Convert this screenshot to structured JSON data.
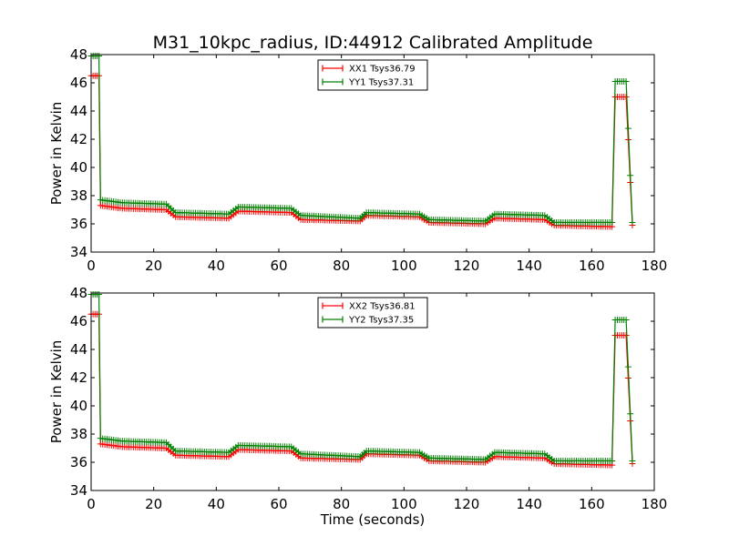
{
  "chart_data": [
    {
      "type": "line",
      "title": "M31_10kpc_radius, ID:44912 Calibrated Amplitude",
      "xlabel": "",
      "ylabel": "Power in Kelvin",
      "xlim": [
        0,
        180
      ],
      "ylim": [
        34,
        48
      ],
      "xticks": [
        "0",
        "20",
        "40",
        "60",
        "80",
        "100",
        "120",
        "140",
        "160",
        "180"
      ],
      "yticks": [
        "34",
        "36",
        "38",
        "40",
        "42",
        "44",
        "46",
        "48"
      ],
      "grid": false,
      "legend_position": "top-center",
      "series": [
        {
          "name": "XX1 Tsys36.79",
          "color": "#ff0000",
          "x": [
            0,
            2.5,
            3,
            10,
            24,
            27,
            44,
            47,
            64,
            67,
            86,
            88,
            105,
            108,
            126,
            129,
            145,
            148,
            166.5,
            167.5,
            171,
            173
          ],
          "y": [
            46.5,
            46.5,
            37.3,
            37.1,
            37.0,
            36.5,
            36.4,
            36.9,
            36.8,
            36.3,
            36.2,
            36.6,
            36.5,
            36.1,
            36.0,
            36.4,
            36.3,
            35.9,
            35.8,
            45.0,
            45.0,
            35.9
          ]
        },
        {
          "name": "YY1 Tsys37.31",
          "color": "#008000",
          "x": [
            0,
            2.5,
            3,
            10,
            24,
            27,
            44,
            47,
            64,
            67,
            86,
            88,
            105,
            108,
            126,
            129,
            145,
            148,
            166.5,
            167.5,
            171,
            173
          ],
          "y": [
            47.9,
            47.9,
            37.7,
            37.5,
            37.4,
            36.8,
            36.7,
            37.2,
            37.1,
            36.6,
            36.4,
            36.8,
            36.7,
            36.3,
            36.2,
            36.7,
            36.6,
            36.1,
            36.1,
            46.1,
            46.1,
            36.1
          ]
        }
      ]
    },
    {
      "type": "line",
      "title": "",
      "xlabel": "Time (seconds)",
      "ylabel": "Power in Kelvin",
      "xlim": [
        0,
        180
      ],
      "ylim": [
        34,
        48
      ],
      "xticks": [
        "0",
        "20",
        "40",
        "60",
        "80",
        "100",
        "120",
        "140",
        "160",
        "180"
      ],
      "yticks": [
        "34",
        "36",
        "38",
        "40",
        "42",
        "44",
        "46",
        "48"
      ],
      "grid": false,
      "legend_position": "top-center",
      "series": [
        {
          "name": "XX2 Tsys36.81",
          "color": "#ff0000",
          "x": [
            0,
            2.5,
            3,
            10,
            24,
            27,
            44,
            47,
            64,
            67,
            86,
            88,
            105,
            108,
            126,
            129,
            145,
            148,
            166.5,
            167.5,
            171,
            173
          ],
          "y": [
            46.5,
            46.5,
            37.3,
            37.1,
            37.0,
            36.5,
            36.4,
            36.9,
            36.8,
            36.3,
            36.2,
            36.6,
            36.5,
            36.1,
            36.0,
            36.4,
            36.3,
            35.9,
            35.8,
            45.0,
            45.0,
            35.9
          ]
        },
        {
          "name": "YY2 Tsys37.35",
          "color": "#008000",
          "x": [
            0,
            2.5,
            3,
            10,
            24,
            27,
            44,
            47,
            64,
            67,
            86,
            88,
            105,
            108,
            126,
            129,
            145,
            148,
            166.5,
            167.5,
            171,
            173
          ],
          "y": [
            47.9,
            47.9,
            37.7,
            37.5,
            37.4,
            36.8,
            36.7,
            37.2,
            37.1,
            36.6,
            36.4,
            36.8,
            36.7,
            36.3,
            36.2,
            36.7,
            36.6,
            36.1,
            36.1,
            46.1,
            46.1,
            36.1
          ]
        }
      ]
    }
  ]
}
